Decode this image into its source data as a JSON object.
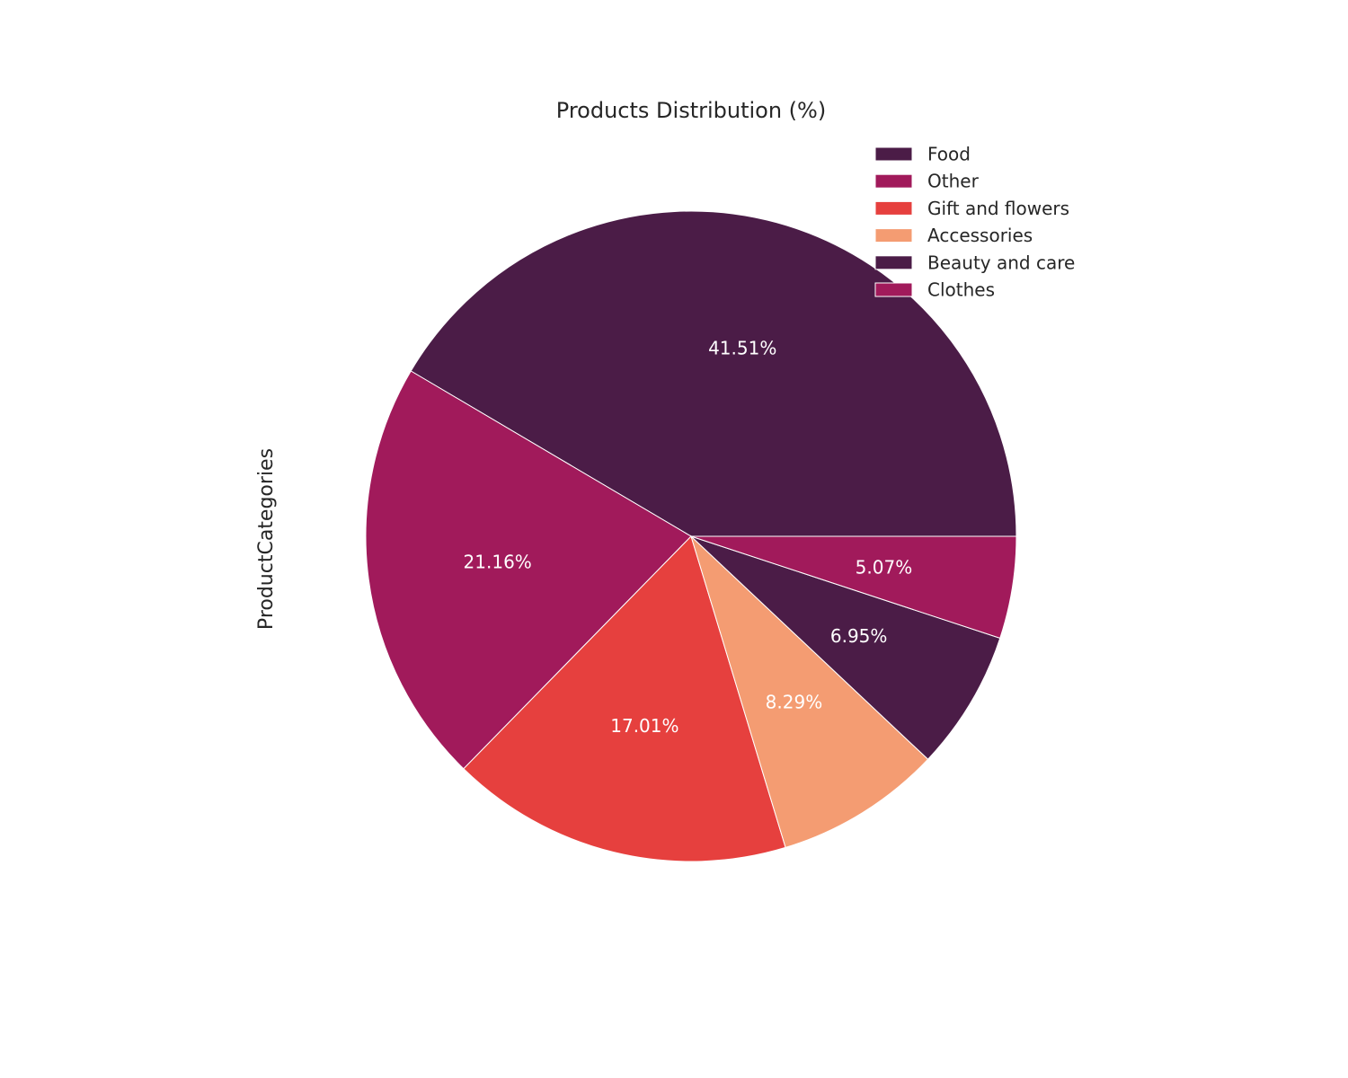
{
  "chart_data": {
    "type": "pie",
    "title": "Products Distribution  (%)",
    "ylabel": "ProductCategories",
    "slices": [
      {
        "label": "Food",
        "value": 41.51,
        "display": "41.51%",
        "color": "#4b1c47"
      },
      {
        "label": "Other",
        "value": 21.16,
        "display": "21.16%",
        "color": "#a11a5b"
      },
      {
        "label": "Gift and flowers",
        "value": 17.01,
        "display": "17.01%",
        "color": "#e6403e"
      },
      {
        "label": "Accessories",
        "value": 8.29,
        "display": "8.29%",
        "color": "#f49c72"
      },
      {
        "label": "Beauty and care",
        "value": 6.95,
        "display": "6.95%",
        "color": "#4b1c47"
      },
      {
        "label": "Clothes",
        "value": 5.07,
        "display": "5.07%",
        "color": "#a11a5b"
      }
    ],
    "start_angle_deg": 0,
    "direction": "counterclockwise",
    "legend_placement": "upper-right",
    "label_color": "#ffffff",
    "wedge_edge_color": "#ffffff"
  }
}
